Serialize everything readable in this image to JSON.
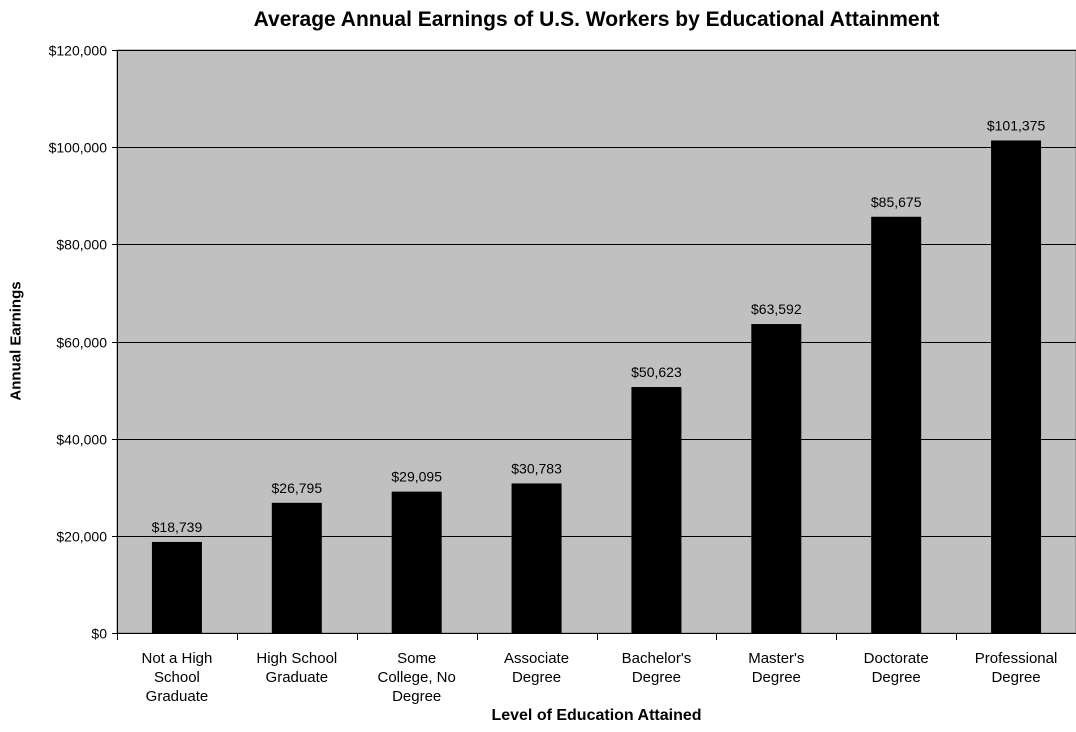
{
  "chart_data": {
    "type": "bar",
    "title": "Average Annual Earnings of U.S. Workers by Educational Attainment",
    "xlabel": "Level of Education Attained",
    "ylabel": "Annual Earnings",
    "ylim": [
      0,
      120000
    ],
    "yticks": [
      0,
      20000,
      40000,
      60000,
      80000,
      100000,
      120000
    ],
    "ytick_labels": [
      "$0",
      "$20,000",
      "$40,000",
      "$60,000",
      "$80,000",
      "$100,000",
      "$120,000"
    ],
    "grid": true,
    "legend": "none",
    "categories": [
      [
        "Not a High",
        "School",
        "Graduate"
      ],
      [
        "High School",
        "Graduate"
      ],
      [
        "Some",
        "College, No",
        "Degree"
      ],
      [
        "Associate",
        "Degree"
      ],
      [
        "Bachelor's",
        "Degree"
      ],
      [
        "Master's",
        "Degree"
      ],
      [
        "Doctorate",
        "Degree"
      ],
      [
        "Professional",
        "Degree"
      ]
    ],
    "values": [
      18739,
      26795,
      29095,
      30783,
      50623,
      63592,
      85675,
      101375
    ],
    "value_labels": [
      "$18,739",
      "$26,795",
      "$29,095",
      "$30,783",
      "$50,623",
      "$63,592",
      "$85,675",
      "$101,375"
    ],
    "colors": {
      "plot_background": "#c0c0c0",
      "bar": "#000000",
      "gridline": "#000000"
    }
  }
}
